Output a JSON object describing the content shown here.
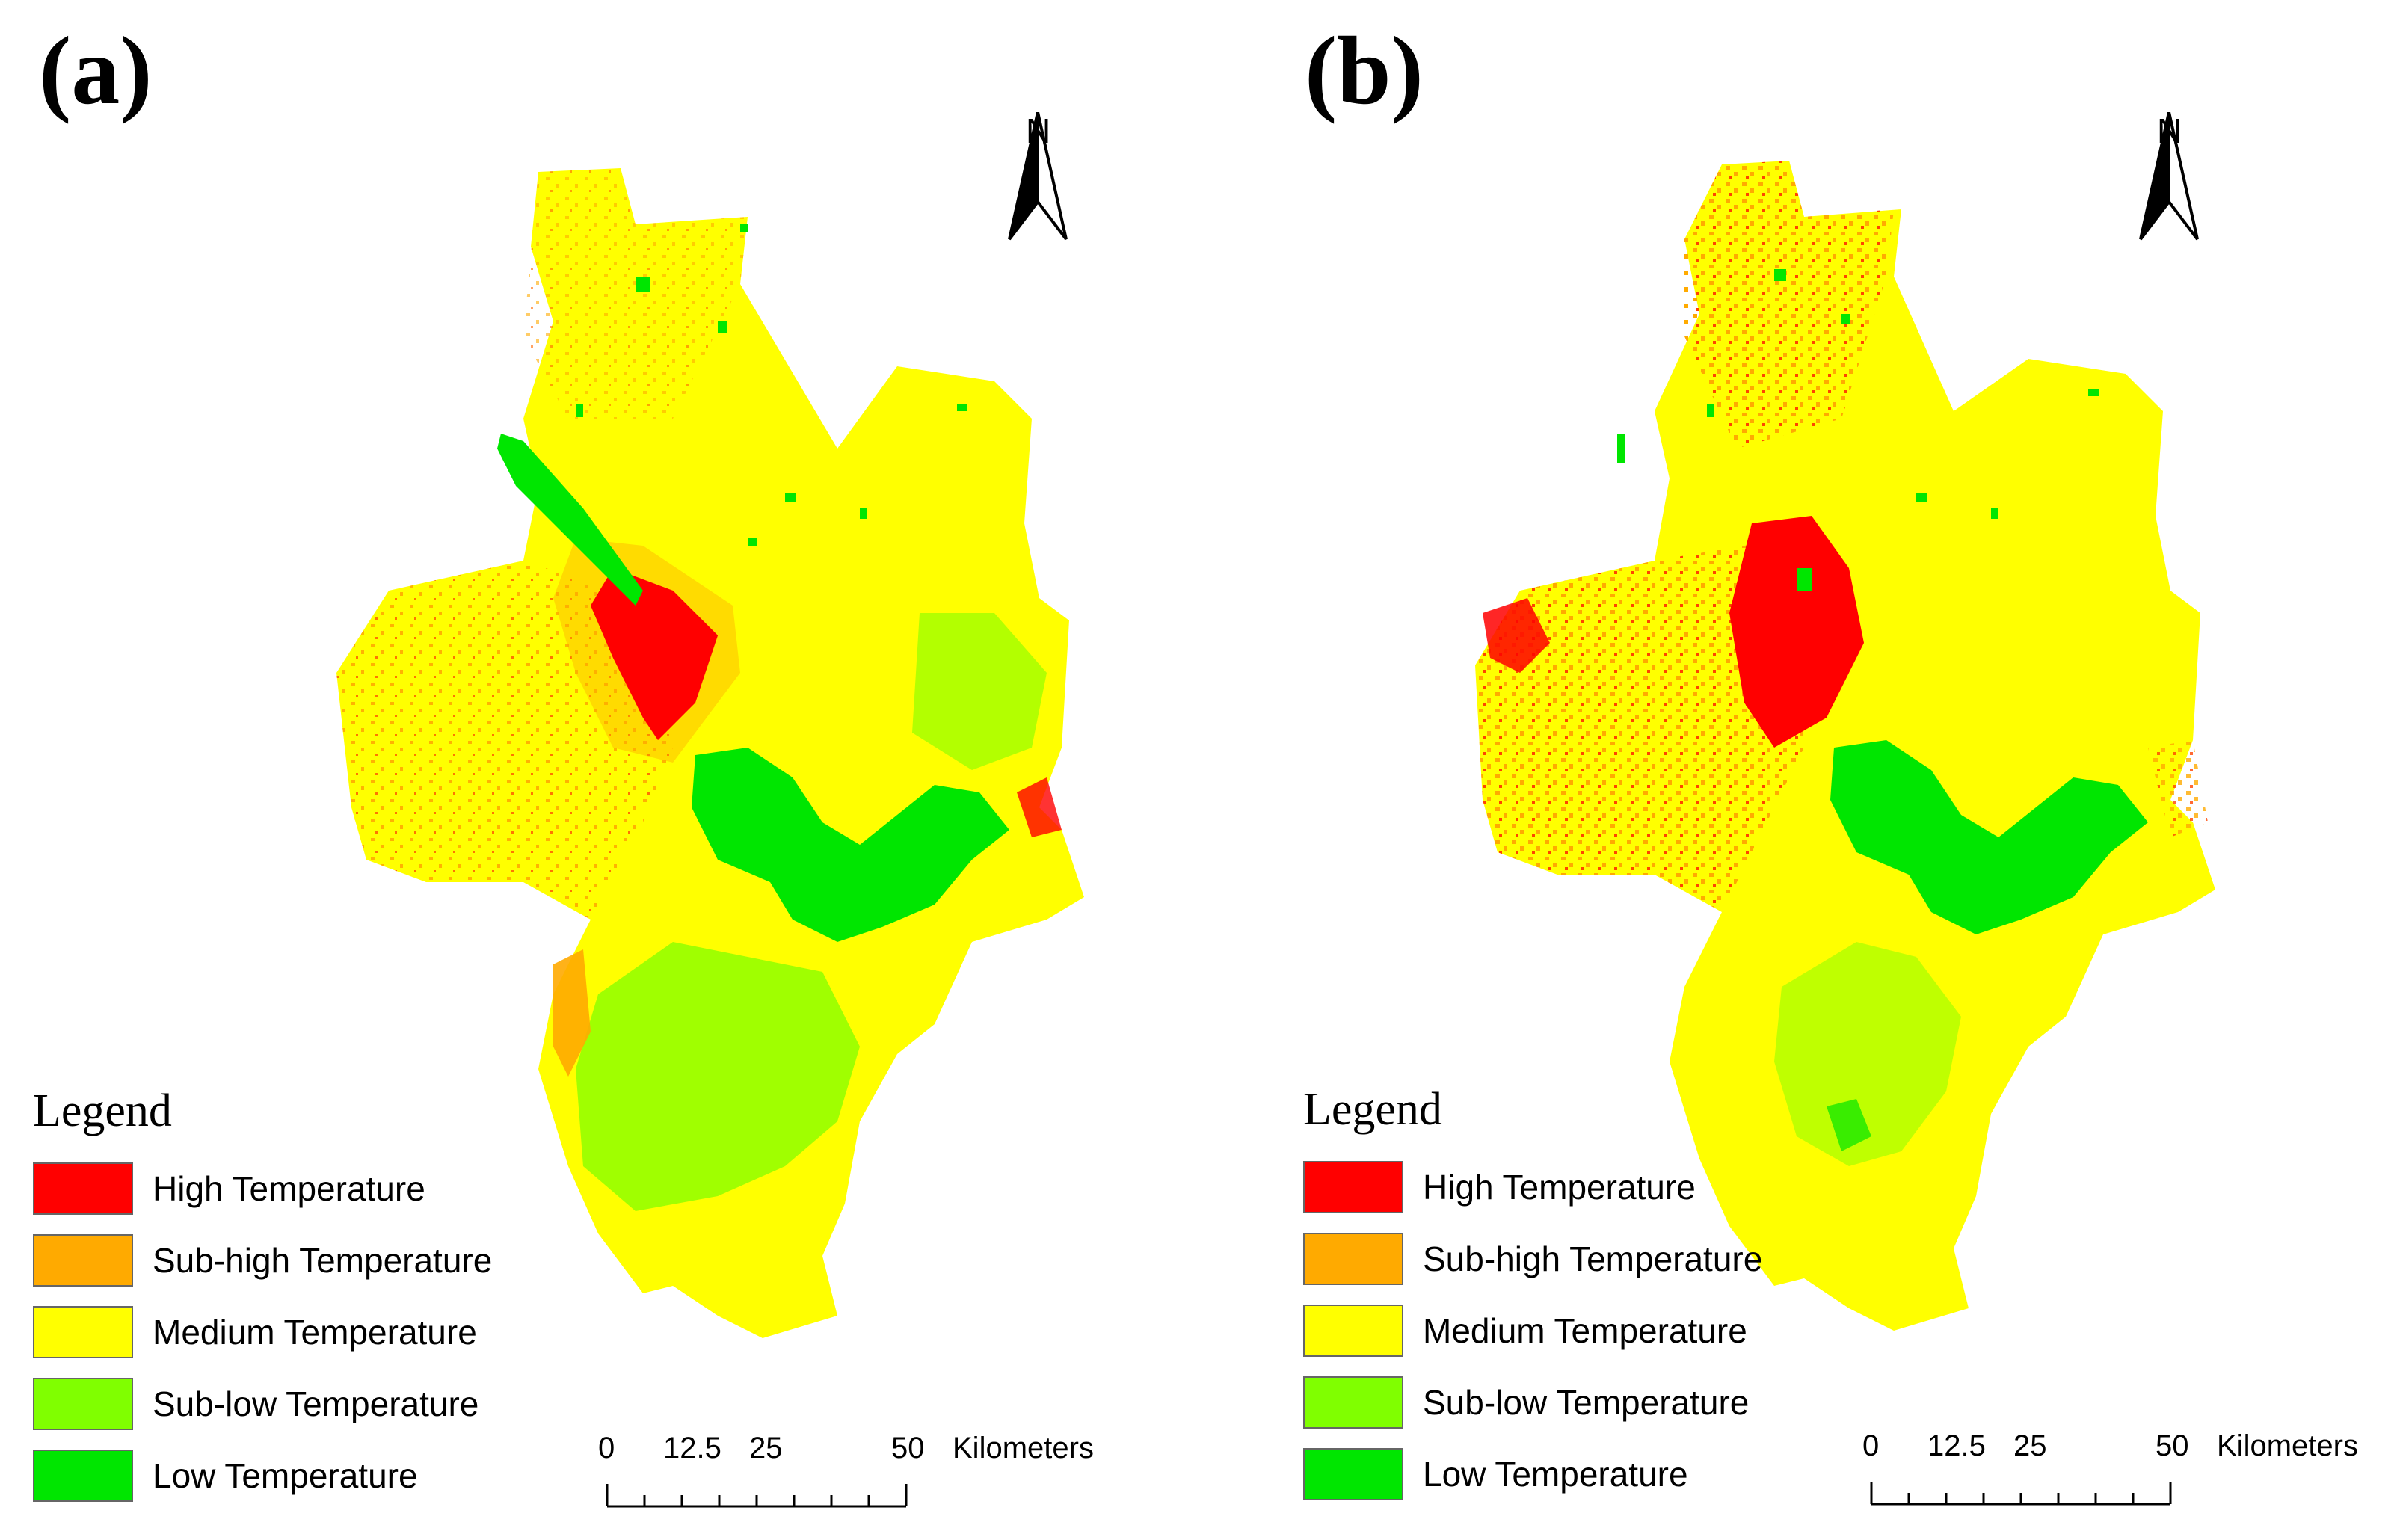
{
  "panels": [
    {
      "label": "(a)",
      "north": "N",
      "legend": {
        "title": "Legend",
        "items": [
          {
            "label": "High Temperature",
            "color": "#ff0000"
          },
          {
            "label": "Sub-high Temperature",
            "color": "#ffaa00"
          },
          {
            "label": "Medium Temperature",
            "color": "#ffff00"
          },
          {
            "label": "Sub-low Temperature",
            "color": "#80ff00"
          },
          {
            "label": "Low Temperature",
            "color": "#00e600"
          }
        ]
      },
      "scale": {
        "ticks": [
          "0",
          "12.5",
          "25",
          "50"
        ],
        "unit": "Kilometers"
      }
    },
    {
      "label": "(b)",
      "north": "N",
      "legend": {
        "title": "Legend",
        "items": [
          {
            "label": "High Temperature",
            "color": "#ff0000"
          },
          {
            "label": "Sub-high Temperature",
            "color": "#ffaa00"
          },
          {
            "label": "Medium Temperature",
            "color": "#ffff00"
          },
          {
            "label": "Sub-low Temperature",
            "color": "#80ff00"
          },
          {
            "label": "Low Temperature",
            "color": "#00e600"
          }
        ]
      },
      "scale": {
        "ticks": [
          "0",
          "12.5",
          "25",
          "50"
        ],
        "unit": "Kilometers"
      }
    }
  ]
}
